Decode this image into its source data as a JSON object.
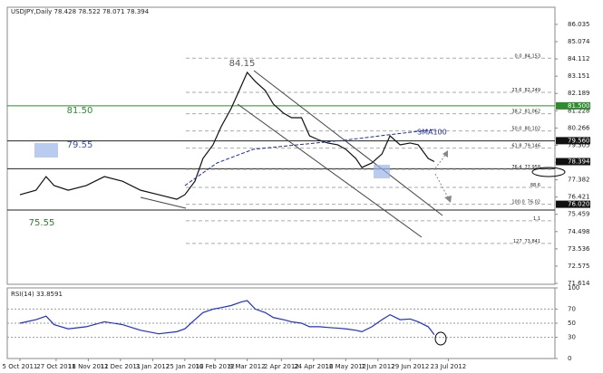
{
  "chart_data": [
    {
      "type": "line",
      "title": "USDJPY,Daily  78.428 78.522 78.071 78.394",
      "x": [
        0,
        8,
        13,
        17,
        24,
        33,
        42,
        51,
        60,
        69,
        78,
        82,
        87,
        91,
        96,
        100,
        105,
        110,
        113,
        117,
        122,
        126,
        131,
        135,
        140,
        144,
        149,
        153,
        158,
        162,
        167,
        170,
        175,
        180,
        184,
        189,
        194,
        198,
        203,
        206
      ],
      "xlim": [
        -6.3,
        266
      ],
      "xticks": [
        {
          "value": 0,
          "label": "5 Oct 2011"
        },
        {
          "value": 18,
          "label": "27 Oct 2011"
        },
        {
          "value": 34,
          "label": "18 Nov 2011"
        },
        {
          "value": 50,
          "label": "12 Dec 2011"
        },
        {
          "value": 66,
          "label": "3 Jan 2012"
        },
        {
          "value": 82,
          "label": "25 Jan 2012"
        },
        {
          "value": 97,
          "label": "16 Feb 2012"
        },
        {
          "value": 113,
          "label": "9 Mar 2012"
        },
        {
          "value": 130,
          "label": "2 Apr 2012"
        },
        {
          "value": 146,
          "label": "24 Apr 2012"
        },
        {
          "value": 162,
          "label": "16 May 2012"
        },
        {
          "value": 178,
          "label": "7 Jun 2012"
        },
        {
          "value": 194,
          "label": "29 Jun 2012"
        },
        {
          "value": 213,
          "label": "23 Jul 2012"
        }
      ],
      "ylim": [
        71.614,
        86.99
      ],
      "yticks": [
        86.035,
        85.074,
        84.112,
        83.151,
        82.189,
        81.228,
        80.266,
        79.305,
        78.344,
        77.382,
        76.421,
        75.459,
        74.498,
        73.536,
        72.575,
        71.614
      ],
      "series": [
        {
          "name": "USDJPY",
          "color": "#111111",
          "values": [
            76.55,
            76.8,
            77.56,
            77.06,
            76.8,
            77.06,
            77.56,
            77.3,
            76.8,
            76.55,
            76.3,
            76.55,
            77.3,
            78.57,
            79.33,
            80.33,
            81.35,
            82.6,
            83.36,
            82.86,
            82.35,
            81.6,
            81.1,
            80.84,
            80.84,
            79.83,
            79.58,
            79.43,
            79.33,
            79.08,
            78.57,
            78.07,
            78.32,
            78.82,
            79.83,
            79.33,
            79.43,
            79.33,
            78.57,
            78.394
          ]
        },
        {
          "name": "SMA100",
          "color": "#1f2f9e",
          "x": [
            82,
            98,
            116,
            138,
            161,
            179,
            198,
            206
          ],
          "values": [
            77.06,
            78.32,
            79.08,
            79.33,
            79.58,
            79.83,
            80.08,
            80.18
          ]
        }
      ],
      "levels": [
        {
          "value": 81.5,
          "color": "#2e8b2e"
        },
        {
          "value": 79.55,
          "color": "#222222"
        },
        {
          "value": 78.0,
          "color": "#222222"
        },
        {
          "value": 75.7,
          "color": "#222222"
        }
      ],
      "annotations": [
        {
          "text": "84.15",
          "color": "#555555"
        },
        {
          "text": "81.50",
          "color": "#2e8b2e"
        },
        {
          "text": "79.55",
          "color": "#3a4fb0"
        },
        {
          "text": "75.55",
          "color": "#2e7d2e"
        }
      ],
      "fib": [
        {
          "ratio": "0.0",
          "price": 84.153
        },
        {
          "ratio": "23.6",
          "price": 82.249
        },
        {
          "ratio": "38.2",
          "price": 81.062
        },
        {
          "ratio": "50.0",
          "price": 80.102
        },
        {
          "ratio": "61.8",
          "price": 79.146
        },
        {
          "ratio": "76.4",
          "price": 77.958
        },
        {
          "ratio": "88.6",
          "value": 76.96
        },
        {
          "ratio": "100.0",
          "price": 76.02
        },
        {
          "ratio": "1.1",
          "value": 75.1
        },
        {
          "ratio": "127",
          "price": 73.841
        }
      ],
      "price_tags": [
        {
          "value": 81.5,
          "label": "81.500",
          "color": "#2e8b2e"
        },
        {
          "value": 79.56,
          "label": "79.560",
          "color": "#111111"
        },
        {
          "value": 78.394,
          "color": "#111111"
        },
        {
          "value": 76.02,
          "label": "76.020",
          "color": "#111111"
        }
      ]
    },
    {
      "type": "line",
      "title": "RSI(14) 33.8591",
      "x": [
        0,
        8,
        13,
        17,
        24,
        33,
        42,
        51,
        60,
        69,
        78,
        82,
        87,
        91,
        96,
        100,
        105,
        110,
        113,
        117,
        122,
        126,
        131,
        135,
        140,
        144,
        149,
        153,
        158,
        162,
        167,
        170,
        175,
        180,
        184,
        189,
        194,
        198,
        203,
        206
      ],
      "ylim": [
        0,
        100
      ],
      "yticks": [
        100,
        70,
        50,
        30,
        0
      ],
      "series": [
        {
          "name": "RSI",
          "color": "#1f2fd0",
          "values": [
            50,
            55,
            60,
            48,
            42,
            45,
            52,
            48,
            40,
            35,
            38,
            42,
            55,
            65,
            70,
            72,
            75,
            80,
            82,
            70,
            65,
            58,
            55,
            52,
            50,
            45,
            45,
            44,
            43,
            42,
            40,
            38,
            45,
            55,
            62,
            55,
            56,
            52,
            45,
            33.86
          ]
        }
      ]
    }
  ]
}
